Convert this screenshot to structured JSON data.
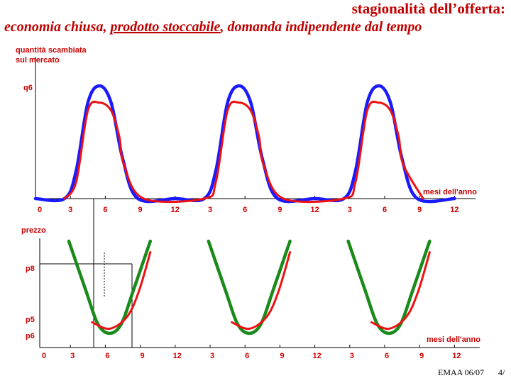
{
  "title": {
    "line1": "stagionalità dell’offerta:",
    "line2_part1": "economia chiusa, ",
    "line2_underlined": "prodotto stoccabile",
    "line2_part2": ", domanda indipendente dal tempo"
  },
  "footer": {
    "code": "EMAA 06/07",
    "page": "4/"
  },
  "colors": {
    "label": "#cc0000",
    "blue": "#1a1aff",
    "red": "#ee1111",
    "green": "#1a8a1a",
    "axis": "#000000"
  },
  "chart_data": [
    {
      "type": "line",
      "ylabel_line1": "quantità scambiata",
      "ylabel_line2": "sul mercato",
      "y_tick_label": "q6",
      "xlabel": "mesi dell'anno",
      "x_ticks": [
        "0",
        "3",
        "6",
        "9",
        "12",
        "3",
        "6",
        "9",
        "12",
        "3",
        "6",
        "9",
        "12"
      ],
      "series": [
        {
          "color": "blue",
          "description_values": "offerta: x in mesi (0-36), y relativa a q6",
          "points": [
            [
              0,
              0
            ],
            [
              2.5,
              0
            ],
            [
              3.5,
              0.25
            ],
            [
              4.5,
              0.85
            ],
            [
              5.5,
              1.0
            ],
            [
              6.5,
              0.85
            ],
            [
              7.5,
              0.35
            ],
            [
              8.8,
              0
            ],
            [
              12,
              0
            ],
            [
              14.5,
              0
            ],
            [
              15.5,
              0.25
            ],
            [
              16.5,
              0.85
            ],
            [
              17.5,
              1.0
            ],
            [
              18.5,
              0.85
            ],
            [
              19.5,
              0.35
            ],
            [
              20.8,
              0
            ],
            [
              24,
              0
            ],
            [
              26.5,
              0
            ],
            [
              27.5,
              0.25
            ],
            [
              28.5,
              0.85
            ],
            [
              29.5,
              1.0
            ],
            [
              30.5,
              0.85
            ],
            [
              31.5,
              0.35
            ],
            [
              32.8,
              0
            ],
            [
              36,
              0
            ]
          ]
        },
        {
          "color": "red",
          "points": [
            [
              2.5,
              0
            ],
            [
              3.5,
              0.15
            ],
            [
              4.5,
              0.78
            ],
            [
              5.5,
              0.85
            ],
            [
              6.5,
              0.78
            ],
            [
              7.2,
              0.55
            ],
            [
              7.6,
              0.3
            ],
            [
              9.3,
              0
            ],
            [
              14.5,
              0
            ],
            [
              15.5,
              0.15
            ],
            [
              16.5,
              0.78
            ],
            [
              17.5,
              0.85
            ],
            [
              18.5,
              0.78
            ],
            [
              19.2,
              0.55
            ],
            [
              19.6,
              0.3
            ],
            [
              21.3,
              0
            ],
            [
              26.5,
              0
            ],
            [
              27.5,
              0.15
            ],
            [
              28.5,
              0.78
            ],
            [
              29.5,
              0.85
            ],
            [
              30.5,
              0.78
            ],
            [
              31.2,
              0.55
            ],
            [
              31.6,
              0.3
            ],
            [
              33.3,
              0
            ]
          ]
        }
      ]
    },
    {
      "type": "line",
      "ylabel": "prezzo",
      "y_tick_labels": [
        "p8",
        "p5",
        "p6"
      ],
      "xlabel": "mesi dell'anno",
      "x_ticks": [
        "0",
        "3",
        "6",
        "9",
        "12",
        "3",
        "6",
        "9",
        "12",
        "3",
        "6",
        "9",
        "12"
      ],
      "series": [
        {
          "color": "green",
          "points": [
            [
              2.5,
              1.0
            ],
            [
              4,
              0.45
            ],
            [
              5,
              0.1
            ],
            [
              6,
              0.0
            ],
            [
              7,
              0.1
            ],
            [
              8,
              0.45
            ],
            [
              9.5,
              1.0
            ],
            [
              14.5,
              1.0
            ],
            [
              16,
              0.45
            ],
            [
              17,
              0.1
            ],
            [
              18,
              0.0
            ],
            [
              19,
              0.1
            ],
            [
              20,
              0.45
            ],
            [
              21.5,
              1.0
            ],
            [
              26.5,
              1.0
            ],
            [
              28,
              0.45
            ],
            [
              29,
              0.1
            ],
            [
              30,
              0.0
            ],
            [
              31,
              0.1
            ],
            [
              32,
              0.45
            ],
            [
              33.5,
              1.0
            ]
          ]
        },
        {
          "color": "red",
          "points": [
            [
              4.5,
              0.12
            ],
            [
              6,
              0.05
            ],
            [
              7.5,
              0.18
            ],
            [
              8.5,
              0.45
            ],
            [
              9.5,
              0.88
            ],
            [
              16.5,
              0.12
            ],
            [
              18,
              0.05
            ],
            [
              19.5,
              0.18
            ],
            [
              20.5,
              0.45
            ],
            [
              21.5,
              0.88
            ],
            [
              28.5,
              0.12
            ],
            [
              30,
              0.05
            ],
            [
              31.5,
              0.18
            ],
            [
              32.5,
              0.45
            ],
            [
              33.5,
              0.88
            ]
          ]
        }
      ]
    }
  ]
}
